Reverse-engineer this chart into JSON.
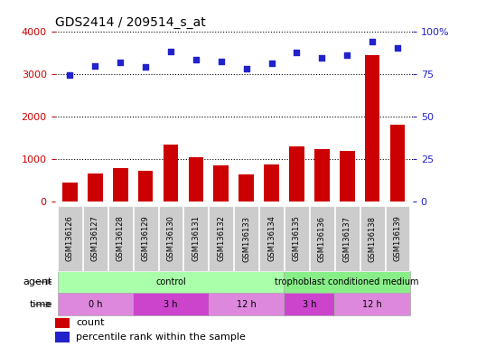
{
  "title": "GDS2414 / 209514_s_at",
  "samples": [
    "GSM136126",
    "GSM136127",
    "GSM136128",
    "GSM136129",
    "GSM136130",
    "GSM136131",
    "GSM136132",
    "GSM136133",
    "GSM136134",
    "GSM136135",
    "GSM136136",
    "GSM136137",
    "GSM136138",
    "GSM136139"
  ],
  "counts": [
    430,
    660,
    790,
    720,
    1340,
    1040,
    840,
    630,
    860,
    1290,
    1230,
    1190,
    3440,
    1810
  ],
  "percentile_ranks": [
    74.5,
    79.5,
    81.5,
    79.0,
    88.0,
    83.5,
    82.0,
    78.0,
    81.0,
    87.5,
    84.5,
    86.0,
    94.0,
    90.0
  ],
  "bar_color": "#cc0000",
  "dot_color": "#2222cc",
  "ylim_left": [
    0,
    4000
  ],
  "ylim_right": [
    0,
    100
  ],
  "yticks_left": [
    0,
    1000,
    2000,
    3000,
    4000
  ],
  "yticks_right": [
    0,
    25,
    50,
    75,
    100
  ],
  "ytick_labels_right": [
    "0",
    "25",
    "50",
    "75",
    "100%"
  ],
  "agent_groups": [
    {
      "label": "control",
      "start": 0,
      "end": 9,
      "color": "#aaffaa"
    },
    {
      "label": "trophoblast conditioned medium",
      "start": 9,
      "end": 14,
      "color": "#88ee88"
    }
  ],
  "time_groups": [
    {
      "label": "0 h",
      "start": 0,
      "end": 3,
      "color": "#dd88dd"
    },
    {
      "label": "3 h",
      "start": 3,
      "end": 6,
      "color": "#cc44cc"
    },
    {
      "label": "12 h",
      "start": 6,
      "end": 9,
      "color": "#dd88dd"
    },
    {
      "label": "3 h",
      "start": 9,
      "end": 11,
      "color": "#cc44cc"
    },
    {
      "label": "12 h",
      "start": 11,
      "end": 14,
      "color": "#dd88dd"
    }
  ],
  "ylabel_left_color": "#cc0000",
  "ylabel_right_color": "#2222cc",
  "grid_color": "#000000",
  "bg_color": "#ffffff",
  "xtick_bg_color": "#cccccc",
  "legend_count_color": "#cc0000",
  "legend_pct_color": "#2222cc"
}
